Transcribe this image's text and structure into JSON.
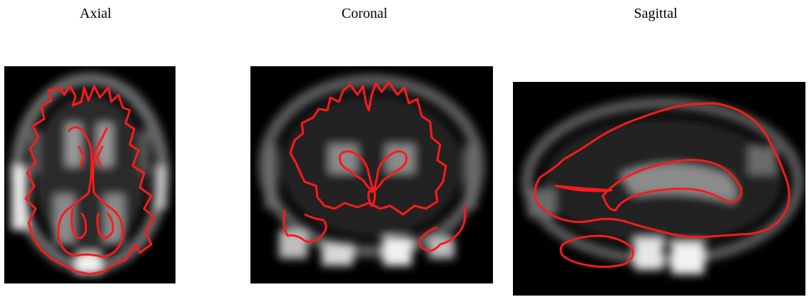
{
  "figure": {
    "views": [
      {
        "key": "axial",
        "title": "Axial"
      },
      {
        "key": "coronal",
        "title": "Coronal"
      },
      {
        "key": "sagittal",
        "title": "Sagittal"
      }
    ]
  },
  "style": {
    "background": "#000000",
    "contour_color": "#ff1a1a",
    "label_color": "#000000"
  }
}
